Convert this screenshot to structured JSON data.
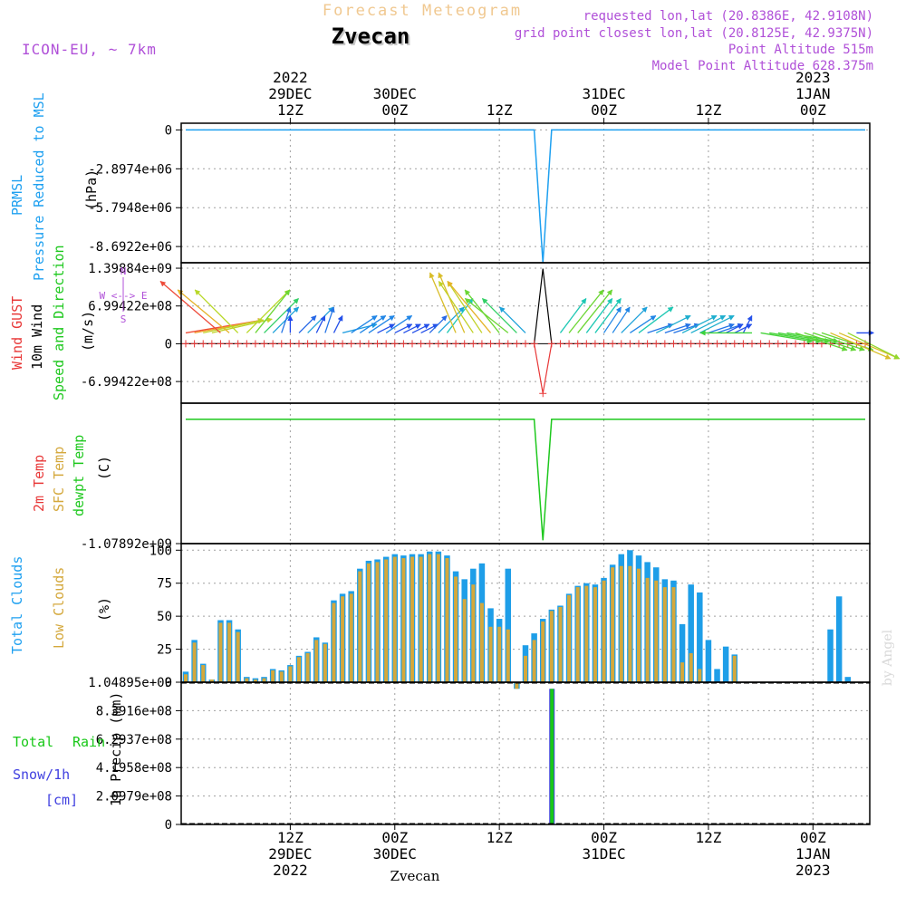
{
  "header": {
    "super_title": "Forecast Meteogram",
    "station": "Zvecan",
    "model": "ICON-EU, ~ 7km",
    "requested": "requested lon,lat (20.8386E, 42.9108N)",
    "grid_point": "grid point closest lon,lat (20.8125E, 42.9375N)",
    "point_alt": "Point Altitude 515m",
    "model_alt": "Model Point Altitude 628.375m",
    "footer_station": "Zvecan",
    "credit": "by Angel"
  },
  "time_axis": {
    "top": [
      {
        "t": 12,
        "lines": [
          "2022",
          "29DEC",
          "12Z"
        ]
      },
      {
        "t": 24,
        "lines": [
          "30DEC",
          "00Z"
        ]
      },
      {
        "t": 36,
        "lines": [
          "12Z"
        ]
      },
      {
        "t": 48,
        "lines": [
          "31DEC",
          "00Z"
        ]
      },
      {
        "t": 60,
        "lines": [
          "12Z"
        ]
      },
      {
        "t": 72,
        "lines": [
          "2023",
          "1JAN",
          "00Z"
        ]
      }
    ],
    "bottom": [
      {
        "t": 12,
        "lines": [
          "12Z",
          "29DEC",
          "2022"
        ]
      },
      {
        "t": 24,
        "lines": [
          "00Z",
          "30DEC"
        ]
      },
      {
        "t": 36,
        "lines": [
          "12Z"
        ]
      },
      {
        "t": 48,
        "lines": [
          "00Z",
          "31DEC"
        ]
      },
      {
        "t": 60,
        "lines": [
          "12Z"
        ]
      },
      {
        "t": 72,
        "lines": [
          "00Z",
          "1JAN",
          "2023"
        ]
      }
    ]
  },
  "labels": {
    "p1": [
      "PRMSL",
      "Pressure Reduced to MSL",
      "(hPa)"
    ],
    "p2_gust": "Wind GUST",
    "p2_wind": "10m Wind",
    "p2_dir": "Speed and Direction",
    "p2_unit": "(m/s)",
    "compass": {
      "n": "N",
      "s": "S",
      "we": "W <--> E"
    },
    "p3": [
      "2m Temp",
      "SFC Temp",
      "dewpt Temp",
      "(C)"
    ],
    "p4": [
      "Total Clouds",
      "Low Clouds",
      "(%)"
    ],
    "p5": [
      "Total",
      "Rain",
      "Snow/1h",
      "[cm]",
      "1h Precip (mm)"
    ]
  },
  "colors": {
    "pressure": "#1ea0f0",
    "gust": "#e83838",
    "wind": "#000000",
    "dewpoint": "#1ec81e",
    "total_clouds": "#1e9ee8",
    "low_clouds": "#d4a83c",
    "rain": "#18c818",
    "snow": "#4040e0",
    "purple": "#b050d8",
    "title_orange": "#f0c890"
  },
  "chart_data": [
    {
      "type": "line",
      "name": "PRMSL",
      "ylabel": "Pressure Reduced to MSL (hPa)",
      "ylim": [
        -9900000,
        500000
      ],
      "yticks": [
        0,
        -2897400,
        -5794800,
        -8692200
      ],
      "yticklabels": [
        "0",
        "-2.8974e+06",
        "-5.7948e+06",
        "-8.6922e+06"
      ],
      "x": [
        0,
        40,
        41,
        42,
        78
      ],
      "series": [
        {
          "name": "PRMSL",
          "values": [
            0,
            0,
            -9900000,
            0,
            0
          ]
        }
      ]
    },
    {
      "type": "line",
      "name": "Wind",
      "ylabel": "(m/s)",
      "ylim": [
        -1100000000,
        1500000000
      ],
      "yticks": [
        1398840000,
        699422000,
        0,
        -699422000
      ],
      "yticklabels": [
        "1.39884e+09",
        "6.99422e+08",
        "0",
        "-6.99422e+08"
      ],
      "x": [
        0,
        40,
        41,
        42,
        78
      ],
      "series": [
        {
          "name": "Wind GUST",
          "values": [
            0,
            0,
            -920000000,
            0,
            0
          ]
        },
        {
          "name": "10m Wind",
          "values": [
            0,
            0,
            1390000000,
            0,
            0
          ]
        }
      ],
      "barbs": [
        {
          "t": 0,
          "u": 9,
          "v": 1.5
        },
        {
          "t": 1,
          "u": 8,
          "v": 1.5
        },
        {
          "t": 2,
          "u": 7,
          "v": 1.5
        },
        {
          "t": 3,
          "u": 7,
          "v": 1.6
        },
        {
          "t": 4,
          "u": -7,
          "v": 6
        },
        {
          "t": 5,
          "u": -6,
          "v": 5
        },
        {
          "t": 6,
          "u": -5,
          "v": 5
        },
        {
          "t": 7,
          "u": 5,
          "v": 5
        },
        {
          "t": 8,
          "u": 4,
          "v": 5
        },
        {
          "t": 9,
          "u": 4,
          "v": 4
        },
        {
          "t": 10,
          "u": 3,
          "v": 3
        },
        {
          "t": 11,
          "u": 1,
          "v": 3
        },
        {
          "t": 12,
          "u": 0,
          "v": 2
        },
        {
          "t": 13,
          "u": 2,
          "v": 2
        },
        {
          "t": 14,
          "u": 3,
          "v": 3
        },
        {
          "t": 15,
          "u": 1,
          "v": 2
        },
        {
          "t": 16,
          "u": 1,
          "v": 3
        },
        {
          "t": 17,
          "u": 1,
          "v": 2
        },
        {
          "t": 18,
          "u": 4,
          "v": 1
        },
        {
          "t": 19,
          "u": 3,
          "v": 2
        },
        {
          "t": 20,
          "u": 3,
          "v": 2
        },
        {
          "t": 21,
          "u": 3,
          "v": 2
        },
        {
          "t": 22,
          "u": 2,
          "v": 1
        },
        {
          "t": 23,
          "u": 3,
          "v": 2
        },
        {
          "t": 24,
          "u": 2,
          "v": 1
        },
        {
          "t": 25,
          "u": 2,
          "v": 1
        },
        {
          "t": 26,
          "u": 2,
          "v": 1
        },
        {
          "t": 27,
          "u": 2,
          "v": 1
        },
        {
          "t": 28,
          "u": 2,
          "v": 2
        },
        {
          "t": 29,
          "u": 3,
          "v": 3
        },
        {
          "t": 30,
          "u": 3,
          "v": 4
        },
        {
          "t": 31,
          "u": -3,
          "v": 7
        },
        {
          "t": 32,
          "u": -3,
          "v": 7
        },
        {
          "t": 33,
          "u": -4,
          "v": 6
        },
        {
          "t": 34,
          "u": -4,
          "v": 6
        },
        {
          "t": 35,
          "u": -5,
          "v": 6
        },
        {
          "t": 36,
          "u": -4,
          "v": 5
        },
        {
          "t": 37,
          "u": -5,
          "v": 4
        },
        {
          "t": 38,
          "u": -4,
          "v": 4
        },
        {
          "t": 39,
          "u": -3,
          "v": 3
        },
        {
          "t": 43,
          "u": 3,
          "v": 4
        },
        {
          "t": 44,
          "u": 4,
          "v": 5
        },
        {
          "t": 45,
          "u": 4,
          "v": 5
        },
        {
          "t": 46,
          "u": 3,
          "v": 4
        },
        {
          "t": 47,
          "u": 3,
          "v": 4
        },
        {
          "t": 48,
          "u": 2,
          "v": 3
        },
        {
          "t": 49,
          "u": 2,
          "v": 3
        },
        {
          "t": 50,
          "u": 3,
          "v": 3
        },
        {
          "t": 51,
          "u": 3,
          "v": 2
        },
        {
          "t": 52,
          "u": 4,
          "v": 3
        },
        {
          "t": 53,
          "u": 3,
          "v": 1
        },
        {
          "t": 54,
          "u": 4,
          "v": 2
        },
        {
          "t": 55,
          "u": 3,
          "v": 1
        },
        {
          "t": 56,
          "u": 3,
          "v": 1
        },
        {
          "t": 57,
          "u": 4,
          "v": 2
        },
        {
          "t": 58,
          "u": 4,
          "v": 2
        },
        {
          "t": 59,
          "u": 4,
          "v": 2
        },
        {
          "t": 60,
          "u": 3,
          "v": 1
        },
        {
          "t": 61,
          "u": 3,
          "v": 1
        },
        {
          "t": 62,
          "u": 2,
          "v": 1
        },
        {
          "t": 63,
          "u": 2,
          "v": 1
        },
        {
          "t": 64,
          "u": 1,
          "v": 2
        },
        {
          "t": 65,
          "u": -6,
          "v": 0
        },
        {
          "t": 66,
          "u": 6,
          "v": -1
        },
        {
          "t": 67,
          "u": 6,
          "v": -1
        },
        {
          "t": 68,
          "u": 6,
          "v": -1
        },
        {
          "t": 69,
          "u": 6,
          "v": -1
        },
        {
          "t": 70,
          "u": 6,
          "v": -2
        },
        {
          "t": 71,
          "u": 6,
          "v": -2
        },
        {
          "t": 72,
          "u": 6,
          "v": -2
        },
        {
          "t": 73,
          "u": 6,
          "v": -2
        },
        {
          "t": 74,
          "u": 7,
          "v": -3
        },
        {
          "t": 75,
          "u": 7,
          "v": -3
        },
        {
          "t": 76,
          "u": 6,
          "v": -3
        },
        {
          "t": 77,
          "u": 2,
          "v": 0
        }
      ]
    },
    {
      "type": "line",
      "name": "Temperature",
      "ylabel": "(C)",
      "ylim": [
        -1078920000,
        140000000
      ],
      "yticks": [
        -1078920000
      ],
      "yticklabels": [
        "-1.07892e+09"
      ],
      "x": [
        0,
        40,
        41,
        42,
        78
      ],
      "series": [
        {
          "name": "2m Temp",
          "values": [
            0,
            0,
            -1050000000,
            0,
            0
          ]
        },
        {
          "name": "dewpt Temp",
          "values": [
            0,
            0,
            -1050000000,
            0,
            0
          ]
        }
      ]
    },
    {
      "type": "bar",
      "name": "Clouds",
      "ylabel": "(%)",
      "ylim": [
        0,
        105
      ],
      "yticks": [
        100,
        75,
        50,
        25,
        0
      ],
      "yticklabels": [
        "100",
        "75",
        "50",
        "25",
        "0"
      ],
      "series": [
        {
          "name": "Total Clouds",
          "values": [
            8,
            32,
            14,
            2,
            47,
            47,
            40,
            4,
            3,
            4,
            10,
            9,
            13,
            20,
            23,
            34,
            30,
            62,
            67,
            69,
            86,
            92,
            93,
            95,
            97,
            96,
            97,
            97,
            99,
            99,
            96,
            84,
            78,
            86,
            90,
            56,
            48,
            86,
            -5,
            28,
            37,
            48,
            55,
            58,
            67,
            73,
            75,
            74,
            79,
            89,
            97,
            100,
            96,
            91,
            87,
            78,
            77,
            44,
            74,
            68,
            32,
            10,
            27,
            21,
            0,
            0,
            0,
            0,
            0,
            0,
            0,
            0,
            0,
            0,
            40,
            65,
            4
          ]
        },
        {
          "name": "Low Clouds",
          "values": [
            6,
            30,
            13,
            2,
            45,
            45,
            38,
            3,
            2,
            3,
            9,
            8,
            12,
            19,
            22,
            32,
            29,
            60,
            65,
            67,
            84,
            90,
            91,
            93,
            95,
            94,
            95,
            95,
            97,
            97,
            94,
            80,
            63,
            74,
            60,
            42,
            42,
            40,
            -5,
            20,
            32,
            46,
            54,
            57,
            66,
            72,
            73,
            72,
            77,
            87,
            88,
            88,
            86,
            79,
            77,
            72,
            72,
            15,
            22,
            10,
            0,
            0,
            0,
            20,
            0,
            0,
            0,
            0,
            0,
            0,
            0,
            0,
            0,
            0,
            0,
            0,
            0
          ]
        }
      ]
    },
    {
      "type": "bar",
      "name": "Precipitation",
      "ylabel": "1h Precip (mm)",
      "ylim": [
        0,
        1048950000
      ],
      "yticks": [
        1048950000,
        839160000,
        629370000,
        419580000,
        209790000,
        0
      ],
      "yticklabels": [
        "1.04895e+09",
        "8.3916e+08",
        "6.2937e+08",
        "4.1958e+08",
        "2.0979e+08",
        "0"
      ],
      "x": [
        41
      ],
      "series": [
        {
          "name": "Total",
          "values": [
            1000000000
          ]
        },
        {
          "name": "Rain",
          "values": [
            1000000000
          ]
        }
      ]
    }
  ]
}
